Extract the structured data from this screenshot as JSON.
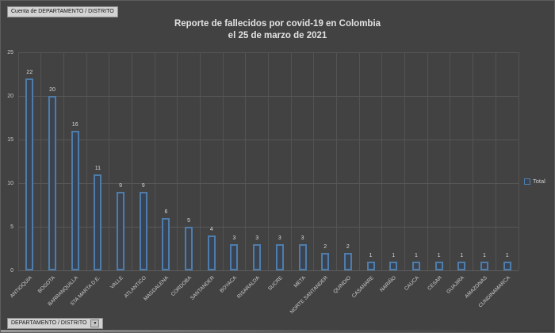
{
  "window": {
    "background": "#424242",
    "accent_blue": "#4e7dac",
    "bar_fill": "#3b4350",
    "text_light": "#d6d6d6"
  },
  "pivot_buttons": {
    "value_field": "Cuenta de DEPARTAMENTO / DISTRITO",
    "axis_field": "DEPARTAMENTO / DISTRITO",
    "dropdown_glyph": "▼"
  },
  "chart_data": {
    "type": "bar",
    "title": "Reporte de fallecidos por covid-19 en Colombia",
    "subtitle": "el 25 de marzo de 2021",
    "series_name": "Total",
    "categories": [
      "ANTIOQUIA",
      "BOGOTA",
      "BARRANQUILLA",
      "STA MARTA D.E.",
      "VALLE",
      "ATLANTICO",
      "MAGDALENA",
      "CORDOBA",
      "SANTANDER",
      "BOYACA",
      "RISARALDA",
      "SUCRE",
      "META",
      "NORTE SANTANDER",
      "QUINDIO",
      "CASANARE",
      "NARIÑO",
      "CAUCA",
      "CESAR",
      "GUAJIRA",
      "AMAZONAS",
      "CUNDINAMARCA"
    ],
    "values": [
      22,
      20,
      16,
      11,
      9,
      9,
      6,
      5,
      4,
      3,
      3,
      3,
      3,
      2,
      2,
      1,
      1,
      1,
      1,
      1,
      1,
      1
    ],
    "ylim": [
      0,
      25
    ],
    "yticks": [
      0,
      5,
      10,
      15,
      20,
      25
    ],
    "grid": "major horizontal and vertical",
    "legend_position": "right",
    "data_labels": "outside end"
  }
}
